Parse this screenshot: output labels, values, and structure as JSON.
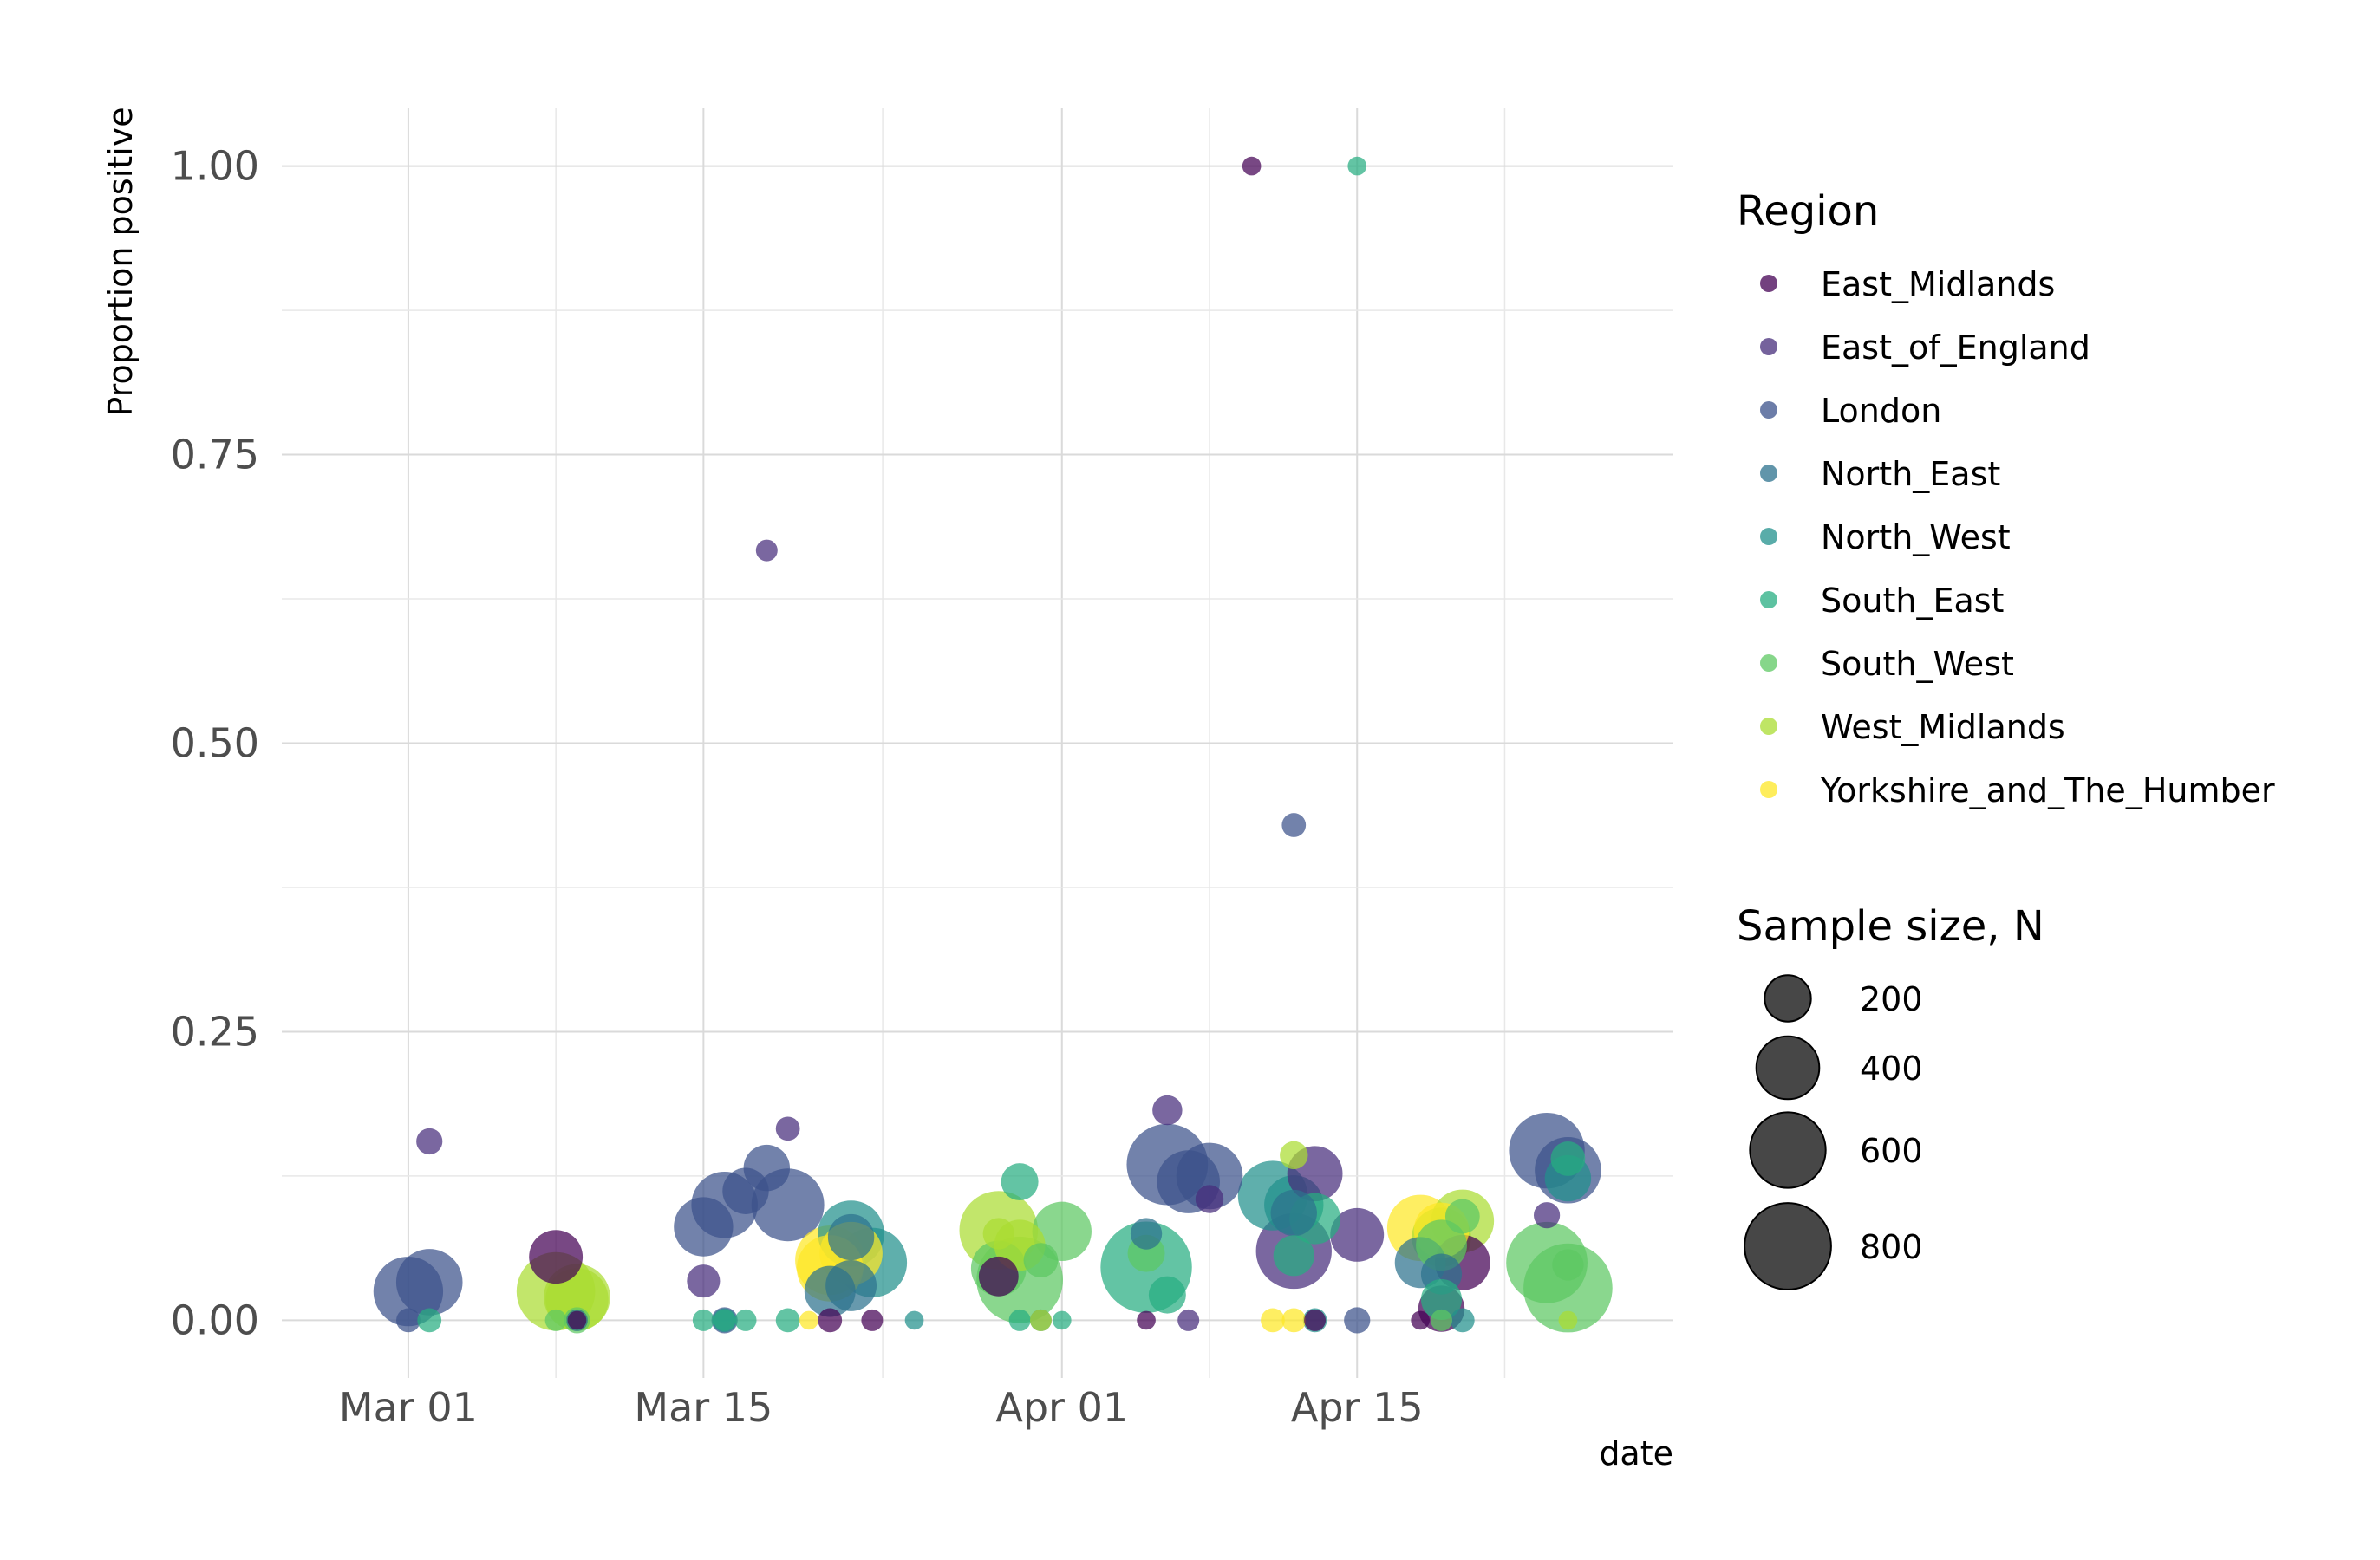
{
  "chart_data": {
    "type": "scatter",
    "title": "",
    "xlabel": "date",
    "ylabel": "Proportion positive",
    "xlim": [
      "2020-02-24",
      "2020-04-30"
    ],
    "ylim": [
      -0.05,
      1.05
    ],
    "x_ticks": [
      "2020-03-01",
      "2020-03-15",
      "2020-04-01",
      "2020-04-15"
    ],
    "x_tick_labels": [
      "Mar 01",
      "Mar 15",
      "Apr 01",
      "Apr 15"
    ],
    "y_ticks": [
      0.0,
      0.25,
      0.5,
      0.75,
      1.0
    ],
    "y_tick_labels": [
      "0.00",
      "0.25",
      "0.50",
      "0.75",
      "1.00"
    ],
    "grid": true,
    "legend_position": "right",
    "color_legend_title": "Region",
    "size_legend_title": "Sample size, N",
    "size_legend": [
      {
        "label": "200",
        "n": 200
      },
      {
        "label": "400",
        "n": 400
      },
      {
        "label": "600",
        "n": 600
      },
      {
        "label": "800",
        "n": 800
      }
    ],
    "series": [
      {
        "name": "East_Midlands",
        "color": "#440154",
        "points": [
          {
            "date": "2020-03-08",
            "y": 0.055,
            "n": 280
          },
          {
            "date": "2020-03-09",
            "y": 0.0,
            "n": 20
          },
          {
            "date": "2020-03-21",
            "y": 0.0,
            "n": 40
          },
          {
            "date": "2020-03-23",
            "y": 0.0,
            "n": 30
          },
          {
            "date": "2020-03-29",
            "y": 0.038,
            "n": 140
          },
          {
            "date": "2020-04-05",
            "y": 0.0,
            "n": 20
          },
          {
            "date": "2020-04-10",
            "y": 1.0,
            "n": 20
          },
          {
            "date": "2020-04-13",
            "y": 0.0,
            "n": 30
          },
          {
            "date": "2020-04-18",
            "y": 0.0,
            "n": 20
          },
          {
            "date": "2020-04-19",
            "y": 0.01,
            "n": 200
          },
          {
            "date": "2020-04-20",
            "y": 0.05,
            "n": 300
          }
        ]
      },
      {
        "name": "East_of_England",
        "color": "#472D7B",
        "points": [
          {
            "date": "2020-03-02",
            "y": 0.155,
            "n": 50
          },
          {
            "date": "2020-03-15",
            "y": 0.034,
            "n": 90
          },
          {
            "date": "2020-03-18",
            "y": 0.667,
            "n": 30
          },
          {
            "date": "2020-03-19",
            "y": 0.166,
            "n": 40
          },
          {
            "date": "2020-04-06",
            "y": 0.182,
            "n": 70
          },
          {
            "date": "2020-04-07",
            "y": 0.0,
            "n": 30
          },
          {
            "date": "2020-04-08",
            "y": 0.105,
            "n": 60
          },
          {
            "date": "2020-04-12",
            "y": 0.06,
            "n": 600
          },
          {
            "date": "2020-04-13",
            "y": 0.127,
            "n": 300
          },
          {
            "date": "2020-04-15",
            "y": 0.074,
            "n": 280
          },
          {
            "date": "2020-04-24",
            "y": 0.091,
            "n": 50
          }
        ]
      },
      {
        "name": "London",
        "color": "#3B528B",
        "points": [
          {
            "date": "2020-03-01",
            "y": 0.025,
            "n": 500
          },
          {
            "date": "2020-03-01",
            "y": 0.0,
            "n": 40
          },
          {
            "date": "2020-03-02",
            "y": 0.033,
            "n": 450
          },
          {
            "date": "2020-03-15",
            "y": 0.081,
            "n": 350
          },
          {
            "date": "2020-03-16",
            "y": 0.1,
            "n": 450
          },
          {
            "date": "2020-03-16",
            "y": 0.0,
            "n": 50
          },
          {
            "date": "2020-03-17",
            "y": 0.112,
            "n": 200
          },
          {
            "date": "2020-03-18",
            "y": 0.132,
            "n": 200
          },
          {
            "date": "2020-03-19",
            "y": 0.1,
            "n": 550
          },
          {
            "date": "2020-04-06",
            "y": 0.135,
            "n": 700
          },
          {
            "date": "2020-04-07",
            "y": 0.12,
            "n": 400
          },
          {
            "date": "2020-04-08",
            "y": 0.125,
            "n": 450
          },
          {
            "date": "2020-04-12",
            "y": 0.429,
            "n": 40
          },
          {
            "date": "2020-04-15",
            "y": 0.0,
            "n": 50
          },
          {
            "date": "2020-04-24",
            "y": 0.147,
            "n": 600
          },
          {
            "date": "2020-04-25",
            "y": 0.13,
            "n": 450
          }
        ]
      },
      {
        "name": "North_East",
        "color": "#2C728E",
        "points": [
          {
            "date": "2020-03-09",
            "y": 0.0,
            "n": 30
          },
          {
            "date": "2020-03-21",
            "y": 0.025,
            "n": 250
          },
          {
            "date": "2020-03-22",
            "y": 0.03,
            "n": 250
          },
          {
            "date": "2020-03-22",
            "y": 0.072,
            "n": 200
          },
          {
            "date": "2020-03-31",
            "y": 0.0,
            "n": 30
          },
          {
            "date": "2020-04-05",
            "y": 0.075,
            "n": 80
          },
          {
            "date": "2020-04-12",
            "y": 0.093,
            "n": 200
          },
          {
            "date": "2020-04-18",
            "y": 0.05,
            "n": 250
          },
          {
            "date": "2020-04-19",
            "y": 0.04,
            "n": 150
          }
        ]
      },
      {
        "name": "North_West",
        "color": "#21908C",
        "points": [
          {
            "date": "2020-03-16",
            "y": 0.0,
            "n": 40
          },
          {
            "date": "2020-03-22",
            "y": 0.075,
            "n": 450
          },
          {
            "date": "2020-03-23",
            "y": 0.05,
            "n": 500
          },
          {
            "date": "2020-03-25",
            "y": 0.0,
            "n": 20
          },
          {
            "date": "2020-04-11",
            "y": 0.108,
            "n": 500
          },
          {
            "date": "2020-04-12",
            "y": 0.1,
            "n": 350
          },
          {
            "date": "2020-04-13",
            "y": 0.0,
            "n": 40
          },
          {
            "date": "2020-04-20",
            "y": 0.0,
            "n": 40
          },
          {
            "date": "2020-04-25",
            "y": 0.123,
            "n": 200
          }
        ]
      },
      {
        "name": "South_East",
        "color": "#27AD81",
        "points": [
          {
            "date": "2020-03-02",
            "y": 0.0,
            "n": 40
          },
          {
            "date": "2020-03-15",
            "y": 0.0,
            "n": 30
          },
          {
            "date": "2020-03-16",
            "y": 0.0,
            "n": 30
          },
          {
            "date": "2020-03-17",
            "y": 0.0,
            "n": 30
          },
          {
            "date": "2020-03-19",
            "y": 0.0,
            "n": 40
          },
          {
            "date": "2020-03-30",
            "y": 0.12,
            "n": 120
          },
          {
            "date": "2020-03-30",
            "y": 0.0,
            "n": 30
          },
          {
            "date": "2020-04-01",
            "y": 0.0,
            "n": 20
          },
          {
            "date": "2020-04-05",
            "y": 0.046,
            "n": 900
          },
          {
            "date": "2020-04-06",
            "y": 0.022,
            "n": 120
          },
          {
            "date": "2020-04-12",
            "y": 0.056,
            "n": 150
          },
          {
            "date": "2020-04-13",
            "y": 0.088,
            "n": 250
          },
          {
            "date": "2020-04-15",
            "y": 1.0,
            "n": 20
          },
          {
            "date": "2020-04-19",
            "y": 0.018,
            "n": 150
          },
          {
            "date": "2020-04-25",
            "y": 0.14,
            "n": 100
          }
        ]
      },
      {
        "name": "South_West",
        "color": "#5DC863",
        "points": [
          {
            "date": "2020-03-08",
            "y": 0.0,
            "n": 30
          },
          {
            "date": "2020-03-09",
            "y": 0.0,
            "n": 50
          },
          {
            "date": "2020-03-29",
            "y": 0.045,
            "n": 300
          },
          {
            "date": "2020-03-30",
            "y": 0.035,
            "n": 800
          },
          {
            "date": "2020-03-31",
            "y": 0.052,
            "n": 100
          },
          {
            "date": "2020-04-01",
            "y": 0.077,
            "n": 350
          },
          {
            "date": "2020-04-05",
            "y": 0.058,
            "n": 120
          },
          {
            "date": "2020-04-19",
            "y": 0.065,
            "n": 250
          },
          {
            "date": "2020-04-19",
            "y": 0.0,
            "n": 30
          },
          {
            "date": "2020-04-20",
            "y": 0.09,
            "n": 100
          },
          {
            "date": "2020-04-24",
            "y": 0.05,
            "n": 700
          },
          {
            "date": "2020-04-25",
            "y": 0.028,
            "n": 850
          },
          {
            "date": "2020-04-25",
            "y": 0.048,
            "n": 80
          }
        ]
      },
      {
        "name": "West_Midlands",
        "color": "#AADC32",
        "points": [
          {
            "date": "2020-03-08",
            "y": 0.025,
            "n": 650
          },
          {
            "date": "2020-03-09",
            "y": 0.02,
            "n": 450
          },
          {
            "date": "2020-03-09",
            "y": 0.018,
            "n": 400
          },
          {
            "date": "2020-03-29",
            "y": 0.078,
            "n": 650
          },
          {
            "date": "2020-03-29",
            "y": 0.075,
            "n": 80
          },
          {
            "date": "2020-03-30",
            "y": 0.065,
            "n": 250
          },
          {
            "date": "2020-03-31",
            "y": 0.0,
            "n": 30
          },
          {
            "date": "2020-04-12",
            "y": 0.143,
            "n": 60
          },
          {
            "date": "2020-04-20",
            "y": 0.086,
            "n": 400
          },
          {
            "date": "2020-04-19",
            "y": 0.072,
            "n": 350
          },
          {
            "date": "2020-04-25",
            "y": 0.0,
            "n": 20
          }
        ]
      },
      {
        "name": "Yorkshire_and_The_Humber",
        "color": "#FDE725",
        "points": [
          {
            "date": "2020-03-20",
            "y": 0.0,
            "n": 20
          },
          {
            "date": "2020-03-21",
            "y": 0.052,
            "n": 500
          },
          {
            "date": "2020-03-21",
            "y": 0.045,
            "n": 450
          },
          {
            "date": "2020-03-22",
            "y": 0.058,
            "n": 400
          },
          {
            "date": "2020-04-11",
            "y": 0.0,
            "n": 40
          },
          {
            "date": "2020-04-12",
            "y": 0.0,
            "n": 40
          },
          {
            "date": "2020-04-18",
            "y": 0.08,
            "n": 450
          },
          {
            "date": "2020-04-19",
            "y": 0.078,
            "n": 300
          }
        ]
      }
    ]
  }
}
